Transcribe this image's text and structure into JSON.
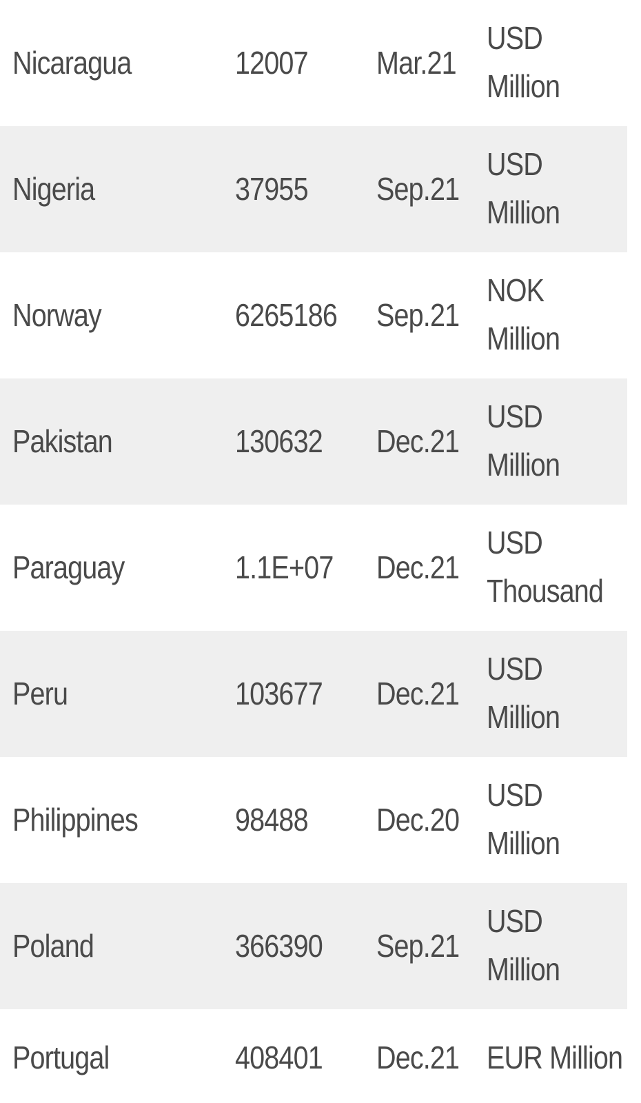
{
  "rows": [
    {
      "country": "Nicaragua",
      "value": "12007",
      "date": "Mar.21",
      "unit_line1": "USD",
      "unit_line2": "Million"
    },
    {
      "country": "Nigeria",
      "value": "37955",
      "date": "Sep.21",
      "unit_line1": "USD",
      "unit_line2": "Million"
    },
    {
      "country": "Norway",
      "value": "6265186",
      "date": "Sep.21",
      "unit_line1": "NOK",
      "unit_line2": "Million"
    },
    {
      "country": "Pakistan",
      "value": "130632",
      "date": "Dec.21",
      "unit_line1": "USD",
      "unit_line2": "Million"
    },
    {
      "country": "Paraguay",
      "value": "1.1E+07",
      "date": "Dec.21",
      "unit_line1": "USD",
      "unit_line2": "Thousand"
    },
    {
      "country": "Peru",
      "value": "103677",
      "date": "Dec.21",
      "unit_line1": "USD",
      "unit_line2": "Million"
    },
    {
      "country": "Philippines",
      "value": "98488",
      "date": "Dec.20",
      "unit_line1": "USD",
      "unit_line2": "Million"
    },
    {
      "country": "Poland",
      "value": "366390",
      "date": "Sep.21",
      "unit_line1": "USD",
      "unit_line2": "Million"
    },
    {
      "country": "Portugal",
      "value": "408401",
      "date": "Dec.21",
      "unit_line1": "EUR Million",
      "unit_line2": ""
    }
  ],
  "colors": {
    "text": "#4a4a4a",
    "row_alt_bg": "#efefef",
    "row_bg": "#ffffff"
  }
}
